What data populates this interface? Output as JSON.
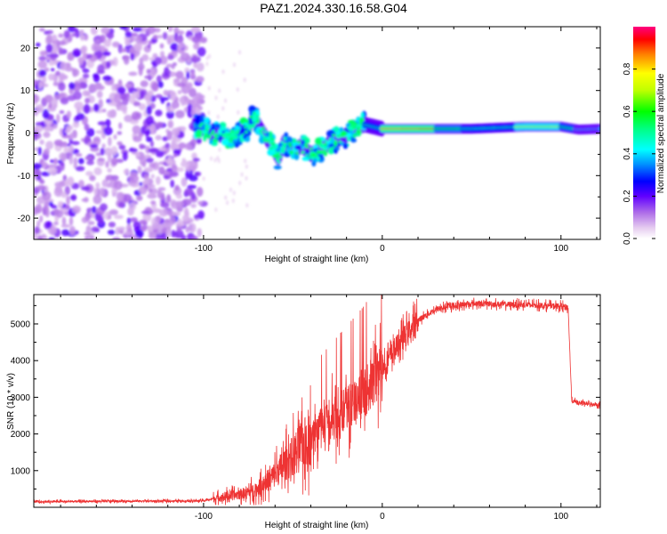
{
  "title": "PAZ1.2024.330.16.58.G04",
  "chart_data": [
    {
      "type": "heatmap",
      "xlabel": "Height of straight line (km)",
      "ylabel": "Frequency (Hz)",
      "xlim": [
        -195,
        122
      ],
      "ylim": [
        -25,
        25
      ],
      "x_ticks": [
        -100,
        0,
        100
      ],
      "y_ticks": [
        -20,
        -10,
        0,
        10,
        20
      ],
      "colorbar": {
        "label": "Normalized spectral amplitude",
        "range": [
          0,
          1
        ],
        "ticks": [
          0.0,
          0.2,
          0.4,
          0.6,
          0.8
        ],
        "colors": [
          "#ffffff",
          "#e6ccf0",
          "#c080e8",
          "#8000ff",
          "#0000ff",
          "#00a0ff",
          "#00ffff",
          "#00ff80",
          "#00ff00",
          "#c0ff00",
          "#ffff00",
          "#ff8000",
          "#ff0000",
          "#ff0080"
        ]
      },
      "features": [
        {
          "name": "noise",
          "x_range": [
            -195,
            -100
          ],
          "freq_range": [
            -25,
            25
          ],
          "amplitude": 0.1
        },
        {
          "name": "signal_track",
          "points": [
            [
              -105,
              2
            ],
            [
              -95,
              0
            ],
            [
              -85,
              -1
            ],
            [
              -75,
              1
            ],
            [
              -72,
              4
            ],
            [
              -68,
              1
            ],
            [
              -62,
              -3
            ],
            [
              -58,
              -6
            ],
            [
              -55,
              -2
            ],
            [
              -50,
              -4
            ],
            [
              -45,
              -3
            ],
            [
              -40,
              -5
            ],
            [
              -35,
              -4
            ],
            [
              -28,
              -2
            ],
            [
              -22,
              -1
            ],
            [
              -15,
              1
            ],
            [
              -10,
              2
            ],
            [
              0,
              1
            ],
            [
              20,
              1
            ],
            [
              50,
              1
            ],
            [
              80,
              1.5
            ],
            [
              100,
              1.5
            ],
            [
              110,
              0.8
            ],
            [
              122,
              1
            ]
          ]
        }
      ]
    },
    {
      "type": "line",
      "xlabel": "Height of straight line (km)",
      "ylabel": "SNR (10 * v/v)",
      "xlim": [
        -195,
        122
      ],
      "ylim": [
        0,
        5800
      ],
      "x_ticks": [
        -100,
        0,
        100
      ],
      "y_ticks": [
        1000,
        2000,
        3000,
        4000,
        5000
      ],
      "series": [
        {
          "color": "#ee3333",
          "x": [
            -195,
            -170,
            -140,
            -120,
            -100,
            -90,
            -80,
            -70,
            -60,
            -50,
            -45,
            -40,
            -30,
            -20,
            -10,
            0,
            10,
            20,
            30,
            40,
            50,
            60,
            70,
            80,
            90,
            100,
            104,
            106,
            110,
            115,
            122
          ],
          "y": [
            150,
            160,
            170,
            170,
            180,
            280,
            350,
            500,
            900,
            1400,
            1700,
            1900,
            2300,
            2700,
            3100,
            3800,
            4500,
            5100,
            5400,
            5500,
            5550,
            5550,
            5530,
            5520,
            5500,
            5480,
            5450,
            2900,
            2850,
            2820,
            2800
          ]
        }
      ]
    }
  ]
}
